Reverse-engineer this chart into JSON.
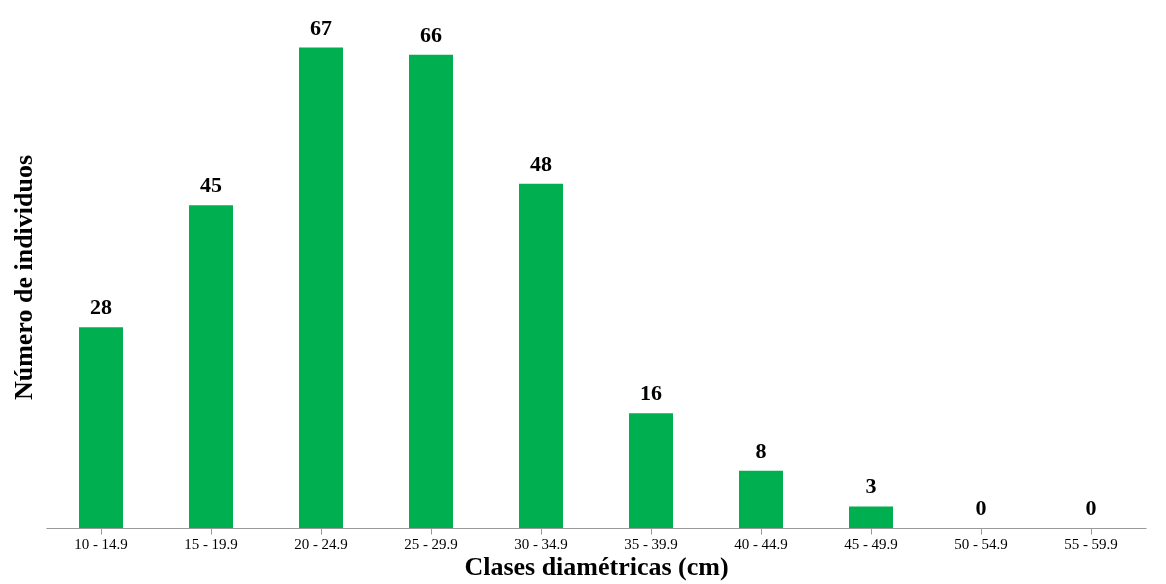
{
  "chart_data": {
    "type": "bar",
    "xlabel": "Clases diamétricas (cm)",
    "ylabel": "Número de individuos",
    "categories": [
      "10 - 14.9",
      "15 - 19.9",
      "20 - 24.9",
      "25 - 29.9",
      "30 - 34.9",
      "35 - 39.9",
      "40 - 44.9",
      "45 - 49.9",
      "50 - 54.9",
      "55 - 59.9"
    ],
    "values": [
      28,
      45,
      67,
      66,
      48,
      16,
      8,
      3,
      0,
      0
    ],
    "color": "#00b050",
    "data_labels": true,
    "tick_labels": "x",
    "grid": false
  }
}
